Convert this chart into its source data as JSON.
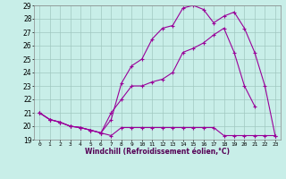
{
  "xlabel": "Windchill (Refroidissement éolien,°C)",
  "background_color": "#c8eee8",
  "line_color": "#990099",
  "grid_color": "#a0c8c0",
  "xlim": [
    -0.5,
    23.5
  ],
  "ylim": [
    19,
    29
  ],
  "xticks": [
    0,
    1,
    2,
    3,
    4,
    5,
    6,
    7,
    8,
    9,
    10,
    11,
    12,
    13,
    14,
    15,
    16,
    17,
    18,
    19,
    20,
    21,
    22,
    23
  ],
  "yticks": [
    19,
    20,
    21,
    22,
    23,
    24,
    25,
    26,
    27,
    28,
    29
  ],
  "line1_x": [
    0,
    1,
    2,
    3,
    4,
    5,
    6,
    7,
    8,
    9,
    10,
    11,
    12,
    13,
    14,
    15,
    16,
    17,
    18,
    19,
    20,
    21,
    22,
    23
  ],
  "line1_y": [
    21.0,
    20.5,
    20.3,
    20.0,
    19.9,
    19.7,
    19.5,
    19.3,
    19.9,
    19.9,
    19.9,
    19.9,
    19.9,
    19.9,
    19.9,
    19.9,
    19.9,
    19.9,
    19.3,
    19.3,
    19.3,
    19.3,
    19.3,
    19.3
  ],
  "line2_x": [
    0,
    1,
    2,
    3,
    4,
    5,
    6,
    7,
    8,
    9,
    10,
    11,
    12,
    13,
    14,
    15,
    16,
    17,
    18,
    19,
    20,
    21
  ],
  "line2_y": [
    21.0,
    20.5,
    20.3,
    20.0,
    19.9,
    19.7,
    19.5,
    21.0,
    22.0,
    23.0,
    23.0,
    23.3,
    23.5,
    24.0,
    25.5,
    25.8,
    26.2,
    26.8,
    27.3,
    25.5,
    23.0,
    21.5
  ],
  "line3_x": [
    0,
    1,
    2,
    3,
    4,
    5,
    6,
    7,
    8,
    9,
    10,
    11,
    12,
    13,
    14,
    15,
    16,
    17,
    18,
    19,
    20,
    21,
    22,
    23
  ],
  "line3_y": [
    21.0,
    20.5,
    20.3,
    20.0,
    19.9,
    19.7,
    19.5,
    20.5,
    23.2,
    24.5,
    25.0,
    26.5,
    27.3,
    27.5,
    28.8,
    29.0,
    28.7,
    27.7,
    28.2,
    28.5,
    27.3,
    25.5,
    23.0,
    19.3
  ]
}
